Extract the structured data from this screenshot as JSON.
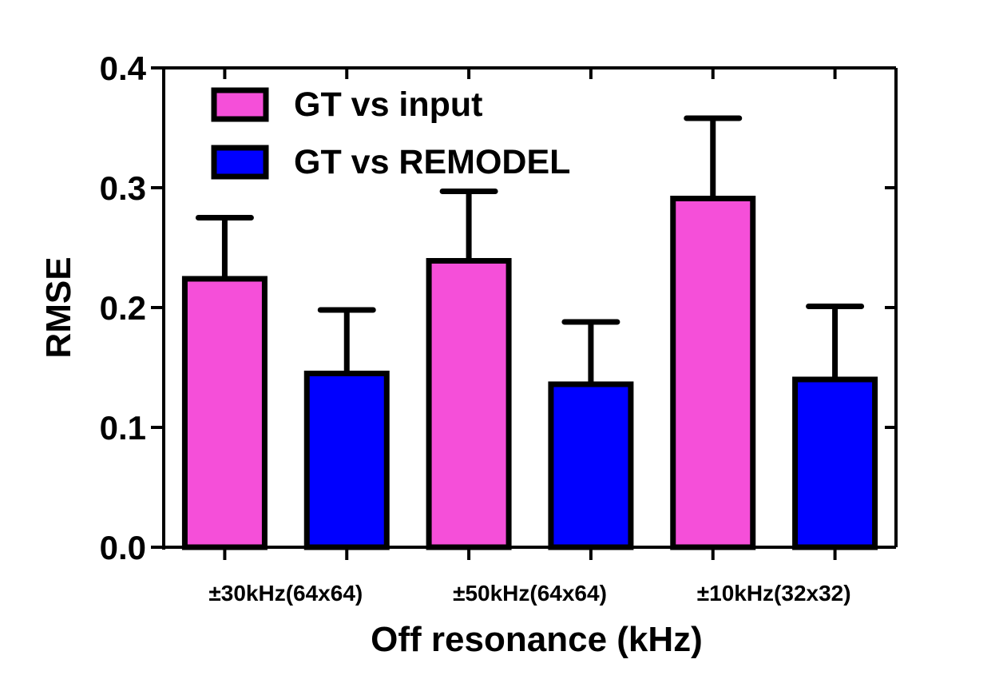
{
  "chart_data": {
    "type": "bar",
    "xlabel": "Off resonance (kHz)",
    "ylabel": "RMSE",
    "ylim": [
      0,
      0.4
    ],
    "yticks": [
      "0.0",
      "0.1",
      "0.2",
      "0.3",
      "0.4"
    ],
    "categories": [
      "±30kHz(64x64)",
      "±50kHz(64x64)",
      "±10kHz(32x32)"
    ],
    "series": [
      {
        "name": "GT vs input",
        "color": "#f54fd9",
        "values": [
          0.224,
          0.239,
          0.291
        ],
        "error": [
          0.051,
          0.058,
          0.067
        ]
      },
      {
        "name": "GT vs REMODEL",
        "color": "#0000ff",
        "values": [
          0.145,
          0.136,
          0.14
        ],
        "error": [
          0.053,
          0.052,
          0.061
        ]
      }
    ],
    "legend_position": "top-left",
    "grid": false
  }
}
